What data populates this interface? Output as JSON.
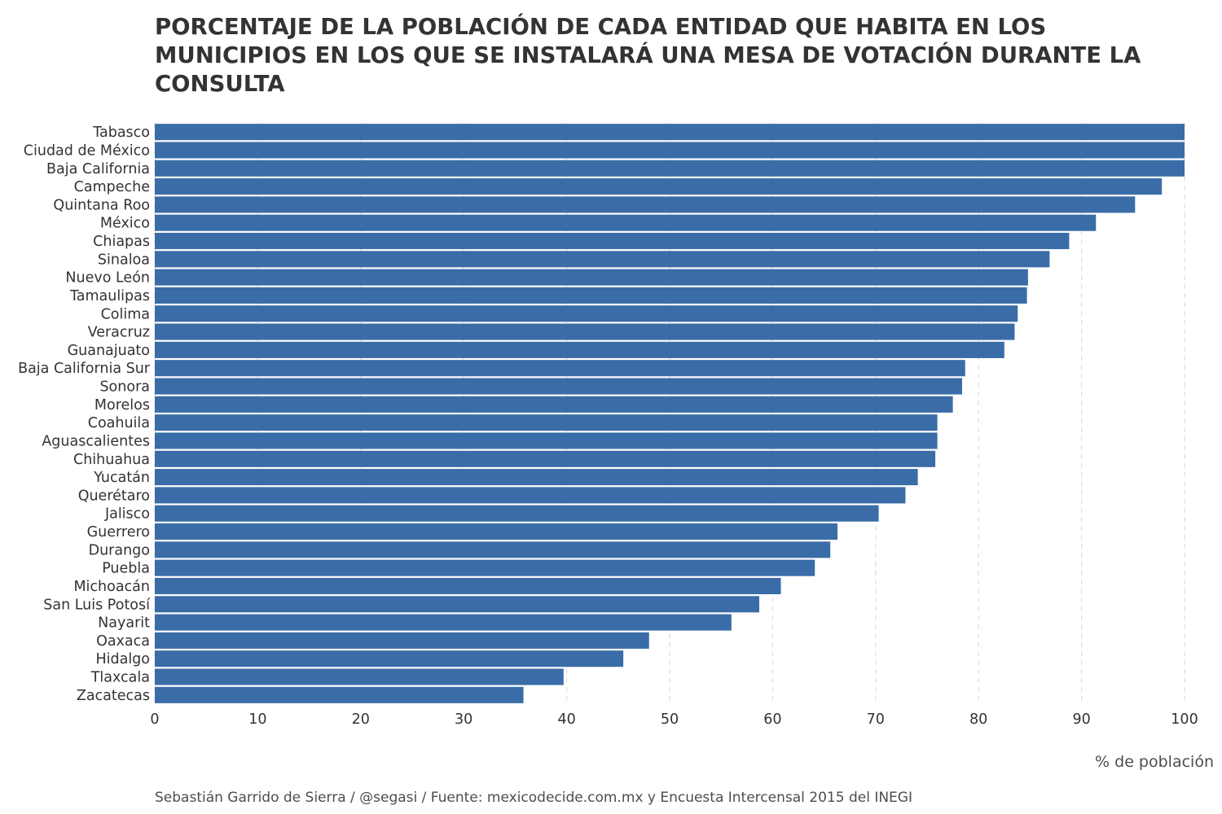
{
  "chart_data": {
    "type": "bar",
    "orientation": "horizontal",
    "title": "PORCENTAJE DE LA POBLACIÓN DE CADA ENTIDAD QUE HABITA EN LOS MUNICIPIOS EN LOS QUE SE INSTALARÁ UNA MESA DE VOTACIÓN DURANTE LA CONSULTA",
    "xlabel": "% de población",
    "ylabel": "",
    "xlim": [
      0,
      100
    ],
    "xticks": [
      "0",
      "10",
      "20",
      "30",
      "40",
      "50",
      "60",
      "70",
      "80",
      "90",
      "100"
    ],
    "grid": "vertical dashed",
    "bar_color": "#3a6da8",
    "categories": [
      "Tabasco",
      "Ciudad de México",
      "Baja California",
      "Campeche",
      "Quintana Roo",
      "México",
      "Chiapas",
      "Sinaloa",
      "Nuevo León",
      "Tamaulipas",
      "Colima",
      "Veracruz",
      "Guanajuato",
      "Baja California Sur",
      "Sonora",
      "Morelos",
      "Coahuila",
      "Aguascalientes",
      "Chihuahua",
      "Yucatán",
      "Querétaro",
      "Jalisco",
      "Guerrero",
      "Durango",
      "Puebla",
      "Michoacán",
      "San Luis Potosí",
      "Nayarit",
      "Oaxaca",
      "Hidalgo",
      "Tlaxcala",
      "Zacatecas"
    ],
    "values": [
      100,
      100,
      100,
      97.8,
      95.2,
      91.4,
      88.8,
      86.9,
      84.8,
      84.7,
      83.8,
      83.5,
      82.5,
      78.7,
      78.4,
      77.5,
      76.0,
      76.0,
      75.8,
      74.1,
      72.9,
      70.3,
      66.3,
      65.6,
      64.1,
      60.8,
      58.7,
      56.0,
      48.0,
      45.5,
      39.7,
      35.8
    ]
  },
  "footer": "Sebastián Garrido de Sierra / @segasi / Fuente: mexicodecide.com.mx y Encuesta Intercensal 2015 del INEGI"
}
